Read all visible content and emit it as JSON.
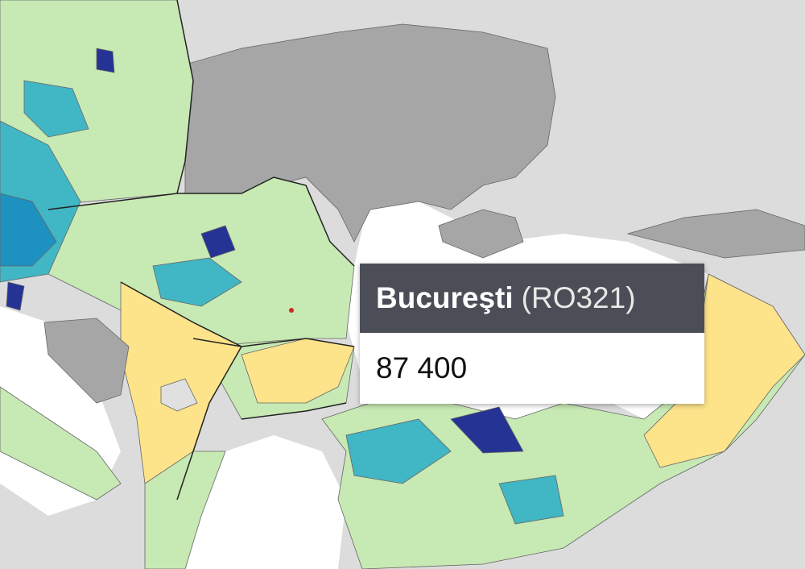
{
  "tooltip": {
    "name": "Bucureşti",
    "code": "(RO321)",
    "value": "87 400"
  }
}
